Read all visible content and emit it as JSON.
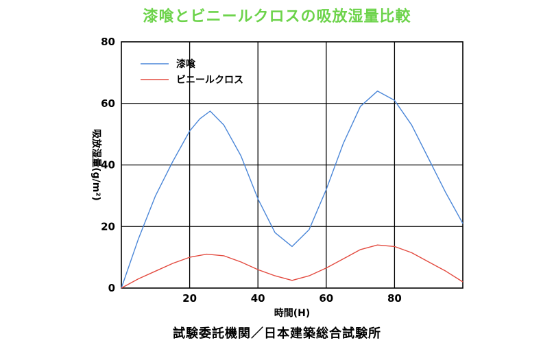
{
  "chart_data": {
    "type": "line",
    "title": "漆喰とビニールクロスの吸放湿量比較",
    "xlabel": "時間(H)",
    "ylabel": "吸放湿量(g/m²)",
    "xlim": [
      0,
      100
    ],
    "ylim": [
      0,
      80
    ],
    "xticks": [
      20,
      40,
      60,
      80
    ],
    "yticks": [
      0,
      20,
      40,
      60,
      80
    ],
    "grid": true,
    "legend_position": "top-left",
    "series": [
      {
        "name": "漆喰",
        "color": "#4a86d8",
        "x": [
          0,
          5,
          10,
          15,
          20,
          23,
          26,
          30,
          35,
          40,
          45,
          50,
          55,
          60,
          65,
          70,
          75,
          80,
          85,
          90,
          95,
          100
        ],
        "y": [
          0,
          16,
          30,
          41,
          51,
          55,
          57.5,
          53,
          43,
          29,
          18,
          13.5,
          19,
          32,
          47,
          59,
          64,
          61,
          53,
          42,
          31,
          21
        ]
      },
      {
        "name": "ビニールクロス",
        "color": "#e34a3f",
        "x": [
          0,
          5,
          10,
          15,
          20,
          25,
          30,
          35,
          40,
          45,
          50,
          55,
          60,
          65,
          70,
          75,
          80,
          85,
          90,
          95,
          100
        ],
        "y": [
          0,
          3,
          5.5,
          8,
          10,
          11,
          10.5,
          8.5,
          6,
          4,
          2.5,
          4,
          6.5,
          9.5,
          12.5,
          14,
          13.5,
          11.5,
          8.5,
          5.5,
          2
        ]
      }
    ]
  },
  "footer": "試験委託機関／日本建築総合試験所"
}
